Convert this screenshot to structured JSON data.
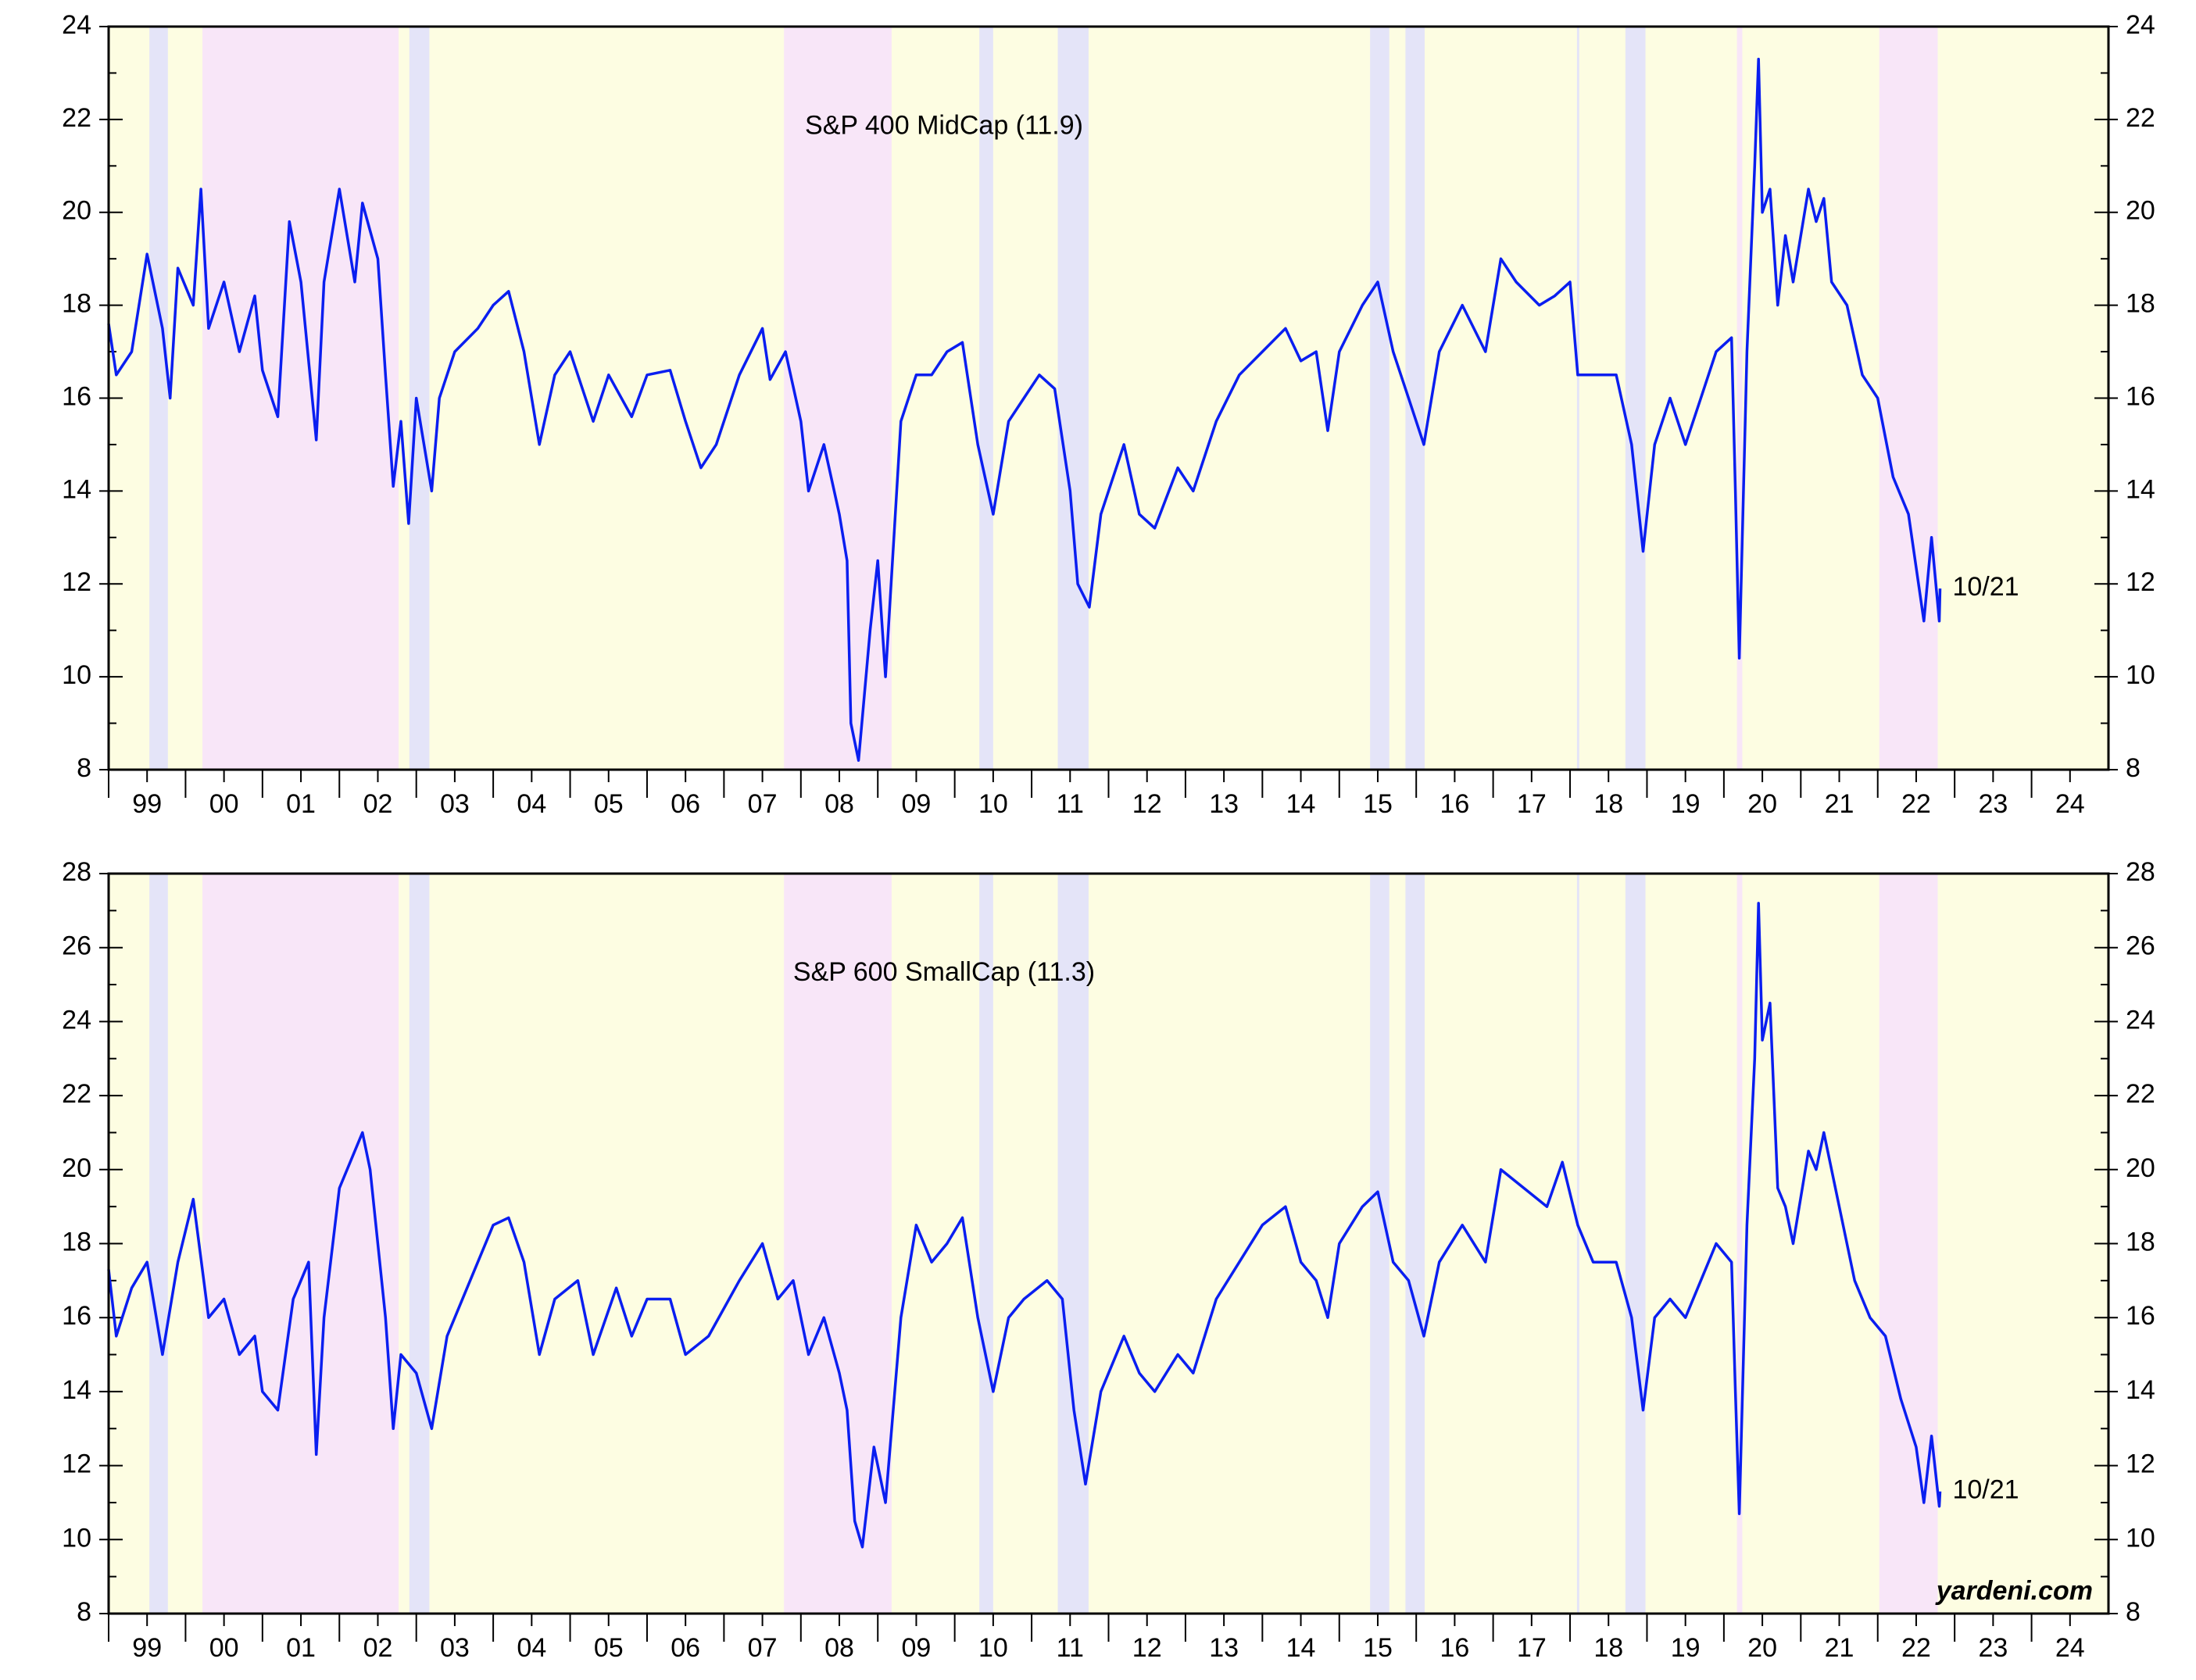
{
  "chart_data": [
    {
      "type": "line",
      "title": "S&P 400 MidCap (11.9)",
      "annotation": "10/21",
      "background": "#fdfde2",
      "xlim": [
        1999,
        2025
      ],
      "ylim": [
        8,
        24
      ],
      "yticks": [
        8,
        10,
        12,
        14,
        16,
        18,
        20,
        22,
        24
      ],
      "xticks": [
        {
          "value": 1999.5,
          "label": "99"
        },
        {
          "value": 2000.5,
          "label": "00"
        },
        {
          "value": 2001.5,
          "label": "01"
        },
        {
          "value": 2002.5,
          "label": "02"
        },
        {
          "value": 2003.5,
          "label": "03"
        },
        {
          "value": 2004.5,
          "label": "04"
        },
        {
          "value": 2005.5,
          "label": "05"
        },
        {
          "value": 2006.5,
          "label": "06"
        },
        {
          "value": 2007.5,
          "label": "07"
        },
        {
          "value": 2008.5,
          "label": "08"
        },
        {
          "value": 2009.5,
          "label": "09"
        },
        {
          "value": 2010.5,
          "label": "10"
        },
        {
          "value": 2011.5,
          "label": "11"
        },
        {
          "value": 2012.5,
          "label": "12"
        },
        {
          "value": 2013.5,
          "label": "13"
        },
        {
          "value": 2014.5,
          "label": "14"
        },
        {
          "value": 2015.5,
          "label": "15"
        },
        {
          "value": 2016.5,
          "label": "16"
        },
        {
          "value": 2017.5,
          "label": "17"
        },
        {
          "value": 2018.5,
          "label": "18"
        },
        {
          "value": 2019.5,
          "label": "19"
        },
        {
          "value": 2020.5,
          "label": "20"
        },
        {
          "value": 2021.5,
          "label": "21"
        },
        {
          "value": 2022.5,
          "label": "22"
        },
        {
          "value": 2023.5,
          "label": "23"
        },
        {
          "value": 2024.5,
          "label": "24"
        }
      ],
      "bands": [
        {
          "from": 1999.53,
          "to": 1999.77,
          "color": "#e4e4f8"
        },
        {
          "from": 2000.22,
          "to": 2002.77,
          "color": "#f8e6f8"
        },
        {
          "from": 2002.91,
          "to": 2003.17,
          "color": "#e4e4f8"
        },
        {
          "from": 2007.78,
          "to": 2009.18,
          "color": "#f8e6f8"
        },
        {
          "from": 2010.32,
          "to": 2010.5,
          "color": "#e4e4f8"
        },
        {
          "from": 2011.34,
          "to": 2011.74,
          "color": "#e4e4f8"
        },
        {
          "from": 2015.4,
          "to": 2015.65,
          "color": "#e4e4f8"
        },
        {
          "from": 2015.86,
          "to": 2016.11,
          "color": "#e4e4f8"
        },
        {
          "from": 2018.09,
          "to": 2018.12,
          "color": "#e4e4f8"
        },
        {
          "from": 2018.72,
          "to": 2018.98,
          "color": "#e4e4f8"
        },
        {
          "from": 2020.17,
          "to": 2020.24,
          "color": "#f8e6f8"
        },
        {
          "from": 2022.02,
          "to": 2022.78,
          "color": "#f8e6f8"
        }
      ],
      "x": [
        1999.0,
        1999.1,
        1999.3,
        1999.5,
        1999.7,
        1999.8,
        1999.9,
        2000.1,
        2000.2,
        2000.3,
        2000.5,
        2000.7,
        2000.9,
        2001.0,
        2001.2,
        2001.35,
        2001.5,
        2001.7,
        2001.8,
        2002.0,
        2002.2,
        2002.3,
        2002.5,
        2002.6,
        2002.7,
        2002.8,
        2002.9,
        2003.0,
        2003.2,
        2003.3,
        2003.5,
        2003.8,
        2004.0,
        2004.2,
        2004.4,
        2004.6,
        2004.8,
        2005.0,
        2005.3,
        2005.5,
        2005.8,
        2006.0,
        2006.3,
        2006.5,
        2006.7,
        2006.9,
        2007.2,
        2007.5,
        2007.6,
        2007.8,
        2008.0,
        2008.1,
        2008.3,
        2008.5,
        2008.6,
        2008.65,
        2008.75,
        2008.9,
        2009.0,
        2009.1,
        2009.3,
        2009.5,
        2009.7,
        2009.9,
        2010.1,
        2010.3,
        2010.5,
        2010.7,
        2010.9,
        2011.1,
        2011.3,
        2011.5,
        2011.6,
        2011.75,
        2011.9,
        2012.2,
        2012.4,
        2012.6,
        2012.9,
        2013.1,
        2013.4,
        2013.7,
        2014.0,
        2014.3,
        2014.5,
        2014.7,
        2014.85,
        2015.0,
        2015.3,
        2015.5,
        2015.7,
        2015.9,
        2016.1,
        2016.3,
        2016.6,
        2016.9,
        2017.1,
        2017.3,
        2017.6,
        2017.8,
        2018.0,
        2018.1,
        2018.4,
        2018.6,
        2018.8,
        2018.95,
        2019.1,
        2019.3,
        2019.5,
        2019.7,
        2019.9,
        2020.1,
        2020.15,
        2020.2,
        2020.3,
        2020.4,
        2020.45,
        2020.5,
        2020.6,
        2020.7,
        2020.8,
        2020.9,
        2021.1,
        2021.2,
        2021.3,
        2021.4,
        2021.6,
        2021.8,
        2022.0,
        2022.2,
        2022.4,
        2022.6,
        2022.7,
        2022.8,
        2022.81
      ],
      "series": [
        {
          "color": "#0a1ef0",
          "values": [
            17.6,
            16.5,
            17.0,
            19.1,
            17.5,
            16.0,
            18.8,
            18.0,
            20.5,
            17.5,
            18.5,
            17.0,
            18.2,
            16.6,
            15.6,
            19.8,
            18.5,
            15.1,
            18.5,
            20.5,
            18.5,
            20.2,
            19.0,
            16.5,
            14.1,
            15.5,
            13.3,
            16.0,
            14.0,
            16.0,
            17.0,
            17.5,
            18.0,
            18.3,
            17.0,
            15.0,
            16.5,
            17.0,
            15.5,
            16.5,
            15.6,
            16.5,
            16.6,
            15.5,
            14.5,
            15.0,
            16.5,
            17.5,
            16.4,
            17.0,
            15.5,
            14.0,
            15.0,
            13.5,
            12.5,
            9.0,
            8.2,
            11.0,
            12.5,
            10.0,
            15.5,
            16.5,
            16.5,
            17.0,
            17.2,
            15.0,
            13.5,
            15.5,
            16.0,
            16.5,
            16.2,
            14.0,
            12.0,
            11.5,
            13.5,
            15.0,
            13.5,
            13.2,
            14.5,
            14.0,
            15.5,
            16.5,
            17.0,
            17.5,
            16.8,
            17.0,
            15.3,
            17.0,
            18.0,
            18.5,
            17.0,
            16.0,
            15.0,
            17.0,
            18.0,
            17.0,
            19.0,
            18.5,
            18.0,
            18.2,
            18.5,
            16.5,
            16.5,
            16.5,
            15.0,
            12.7,
            15.0,
            16.0,
            15.0,
            16.0,
            17.0,
            17.3,
            14.0,
            10.4,
            17.0,
            21.0,
            23.3,
            20.0,
            20.5,
            18.0,
            19.5,
            18.5,
            20.5,
            19.8,
            20.3,
            18.5,
            18.0,
            16.5,
            16.0,
            14.3,
            13.5,
            11.2,
            13.0,
            11.2,
            11.9
          ]
        }
      ]
    },
    {
      "type": "line",
      "title": "S&P 600 SmallCap (11.3)",
      "annotation": "10/21",
      "background": "#fdfde2",
      "xlim": [
        1999,
        2025
      ],
      "ylim": [
        8,
        28
      ],
      "yticks": [
        8,
        10,
        12,
        14,
        16,
        18,
        20,
        22,
        24,
        26,
        28
      ],
      "xticks": [
        {
          "value": 1999.5,
          "label": "99"
        },
        {
          "value": 2000.5,
          "label": "00"
        },
        {
          "value": 2001.5,
          "label": "01"
        },
        {
          "value": 2002.5,
          "label": "02"
        },
        {
          "value": 2003.5,
          "label": "03"
        },
        {
          "value": 2004.5,
          "label": "04"
        },
        {
          "value": 2005.5,
          "label": "05"
        },
        {
          "value": 2006.5,
          "label": "06"
        },
        {
          "value": 2007.5,
          "label": "07"
        },
        {
          "value": 2008.5,
          "label": "08"
        },
        {
          "value": 2009.5,
          "label": "09"
        },
        {
          "value": 2010.5,
          "label": "10"
        },
        {
          "value": 2011.5,
          "label": "11"
        },
        {
          "value": 2012.5,
          "label": "12"
        },
        {
          "value": 2013.5,
          "label": "13"
        },
        {
          "value": 2014.5,
          "label": "14"
        },
        {
          "value": 2015.5,
          "label": "15"
        },
        {
          "value": 2016.5,
          "label": "16"
        },
        {
          "value": 2017.5,
          "label": "17"
        },
        {
          "value": 2018.5,
          "label": "18"
        },
        {
          "value": 2019.5,
          "label": "19"
        },
        {
          "value": 2020.5,
          "label": "20"
        },
        {
          "value": 2021.5,
          "label": "21"
        },
        {
          "value": 2022.5,
          "label": "22"
        },
        {
          "value": 2023.5,
          "label": "23"
        },
        {
          "value": 2024.5,
          "label": "24"
        }
      ],
      "bands": [
        {
          "from": 1999.53,
          "to": 1999.77,
          "color": "#e4e4f8"
        },
        {
          "from": 2000.22,
          "to": 2002.77,
          "color": "#f8e6f8"
        },
        {
          "from": 2002.91,
          "to": 2003.17,
          "color": "#e4e4f8"
        },
        {
          "from": 2007.78,
          "to": 2009.18,
          "color": "#f8e6f8"
        },
        {
          "from": 2010.32,
          "to": 2010.5,
          "color": "#e4e4f8"
        },
        {
          "from": 2011.34,
          "to": 2011.74,
          "color": "#e4e4f8"
        },
        {
          "from": 2015.4,
          "to": 2015.65,
          "color": "#e4e4f8"
        },
        {
          "from": 2015.86,
          "to": 2016.11,
          "color": "#e4e4f8"
        },
        {
          "from": 2018.09,
          "to": 2018.12,
          "color": "#e4e4f8"
        },
        {
          "from": 2018.72,
          "to": 2018.98,
          "color": "#e4e4f8"
        },
        {
          "from": 2020.17,
          "to": 2020.24,
          "color": "#f8e6f8"
        },
        {
          "from": 2022.02,
          "to": 2022.78,
          "color": "#f8e6f8"
        }
      ],
      "x": [
        1999.0,
        1999.1,
        1999.3,
        1999.5,
        1999.7,
        1999.9,
        2000.1,
        2000.3,
        2000.5,
        2000.7,
        2000.9,
        2001.0,
        2001.2,
        2001.4,
        2001.6,
        2001.7,
        2001.8,
        2002.0,
        2002.3,
        2002.4,
        2002.6,
        2002.7,
        2002.8,
        2003.0,
        2003.2,
        2003.4,
        2003.7,
        2004.0,
        2004.2,
        2004.4,
        2004.6,
        2004.8,
        2005.1,
        2005.3,
        2005.6,
        2005.8,
        2006.0,
        2006.3,
        2006.5,
        2006.8,
        2007.2,
        2007.5,
        2007.7,
        2007.9,
        2008.1,
        2008.3,
        2008.5,
        2008.6,
        2008.7,
        2008.8,
        2008.95,
        2009.1,
        2009.3,
        2009.5,
        2009.7,
        2009.9,
        2010.1,
        2010.3,
        2010.5,
        2010.7,
        2010.9,
        2011.2,
        2011.4,
        2011.55,
        2011.7,
        2011.9,
        2012.2,
        2012.4,
        2012.6,
        2012.9,
        2013.1,
        2013.4,
        2013.7,
        2014.0,
        2014.3,
        2014.5,
        2014.7,
        2014.85,
        2015.0,
        2015.3,
        2015.5,
        2015.7,
        2015.9,
        2016.1,
        2016.3,
        2016.6,
        2016.9,
        2017.1,
        2017.4,
        2017.7,
        2017.9,
        2018.1,
        2018.3,
        2018.6,
        2018.8,
        2018.95,
        2019.1,
        2019.3,
        2019.5,
        2019.7,
        2019.9,
        2020.1,
        2020.15,
        2020.2,
        2020.3,
        2020.4,
        2020.45,
        2020.5,
        2020.6,
        2020.7,
        2020.8,
        2020.9,
        2021.1,
        2021.2,
        2021.3,
        2021.5,
        2021.7,
        2021.9,
        2022.1,
        2022.3,
        2022.5,
        2022.6,
        2022.7,
        2022.8,
        2022.81
      ],
      "series": [
        {
          "color": "#0a1ef0",
          "values": [
            17.3,
            15.5,
            16.8,
            17.5,
            15.0,
            17.5,
            19.2,
            16.0,
            16.5,
            15.0,
            15.5,
            14.0,
            13.5,
            16.5,
            17.5,
            12.3,
            16.0,
            19.5,
            21.0,
            20.0,
            16.0,
            13.0,
            15.0,
            14.5,
            13.0,
            15.5,
            17.0,
            18.5,
            18.7,
            17.5,
            15.0,
            16.5,
            17.0,
            15.0,
            16.8,
            15.5,
            16.5,
            16.5,
            15.0,
            15.5,
            17.0,
            18.0,
            16.5,
            17.0,
            15.0,
            16.0,
            14.5,
            13.5,
            10.5,
            9.8,
            12.5,
            11.0,
            16.0,
            18.5,
            17.5,
            18.0,
            18.7,
            16.0,
            14.0,
            16.0,
            16.5,
            17.0,
            16.5,
            13.5,
            11.5,
            14.0,
            15.5,
            14.5,
            14.0,
            15.0,
            14.5,
            16.5,
            17.5,
            18.5,
            19.0,
            17.5,
            17.0,
            16.0,
            18.0,
            19.0,
            19.4,
            17.5,
            17.0,
            15.5,
            17.5,
            18.5,
            17.5,
            20.0,
            19.5,
            19.0,
            20.2,
            18.5,
            17.5,
            17.5,
            16.0,
            13.5,
            16.0,
            16.5,
            16.0,
            17.0,
            18.0,
            17.5,
            14.0,
            10.7,
            18.5,
            23.0,
            27.2,
            23.5,
            24.5,
            19.5,
            19.0,
            18.0,
            20.5,
            20.0,
            21.0,
            19.0,
            17.0,
            16.0,
            15.5,
            13.8,
            12.5,
            11.0,
            12.8,
            10.9,
            11.3
          ]
        }
      ]
    }
  ],
  "source": "yardeni.com"
}
